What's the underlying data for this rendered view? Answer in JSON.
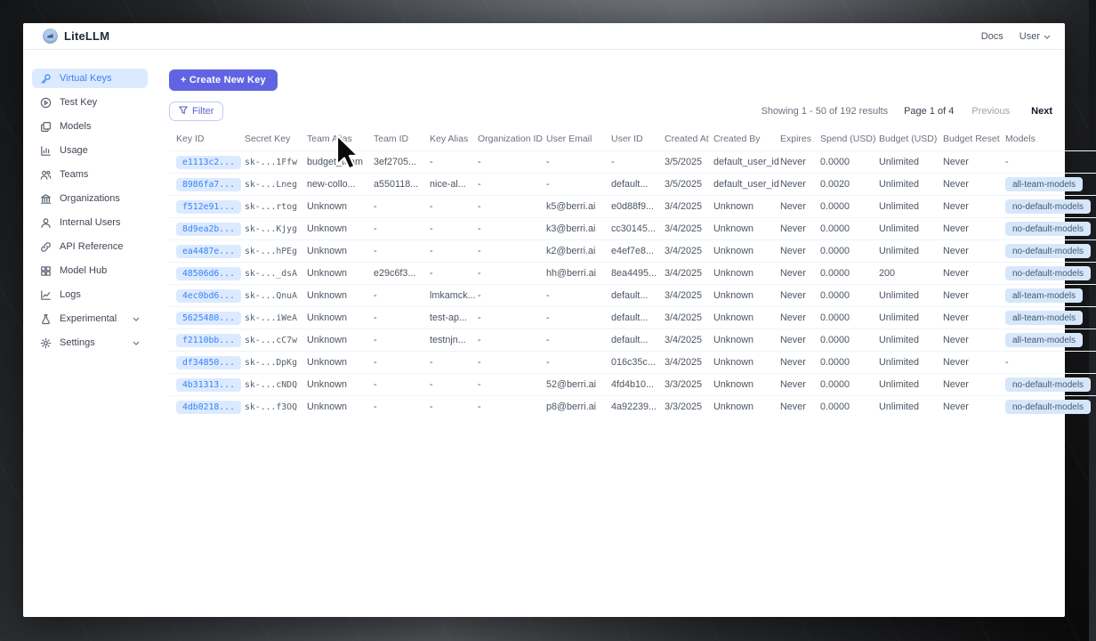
{
  "brand": {
    "name": "LiteLLM"
  },
  "header": {
    "docs_link": "Docs",
    "user_menu": "User"
  },
  "sidebar": {
    "items": [
      {
        "label": "Virtual Keys",
        "icon": "key-icon",
        "selected": true,
        "chevron": false
      },
      {
        "label": "Test Key",
        "icon": "play-icon",
        "selected": false,
        "chevron": false
      },
      {
        "label": "Models",
        "icon": "models-icon",
        "selected": false,
        "chevron": false
      },
      {
        "label": "Usage",
        "icon": "usage-icon",
        "selected": false,
        "chevron": false
      },
      {
        "label": "Teams",
        "icon": "teams-icon",
        "selected": false,
        "chevron": false
      },
      {
        "label": "Organizations",
        "icon": "organization-icon",
        "selected": false,
        "chevron": false
      },
      {
        "label": "Internal Users",
        "icon": "user-icon",
        "selected": false,
        "chevron": false
      },
      {
        "label": "API Reference",
        "icon": "link-icon",
        "selected": false,
        "chevron": false
      },
      {
        "label": "Model Hub",
        "icon": "grid-icon",
        "selected": false,
        "chevron": false
      },
      {
        "label": "Logs",
        "icon": "logs-icon",
        "selected": false,
        "chevron": false
      },
      {
        "label": "Experimental",
        "icon": "flask-icon",
        "selected": false,
        "chevron": true
      },
      {
        "label": "Settings",
        "icon": "gear-icon",
        "selected": false,
        "chevron": true
      }
    ]
  },
  "toolbar": {
    "create_button": "+ Create New Key",
    "filter_button": "Filter"
  },
  "pagination": {
    "showing": "Showing 1 - 50 of 192 results",
    "page": "Page 1 of 4",
    "previous": "Previous",
    "next": "Next"
  },
  "table": {
    "columns": [
      "Key ID",
      "Secret Key",
      "Team Alias",
      "Team ID",
      "Key Alias",
      "Organization ID",
      "User Email",
      "User ID",
      "Created At",
      "Created By",
      "Expires",
      "Spend (USD)",
      "Budget (USD)",
      "Budget Reset",
      "Models"
    ],
    "rows": [
      [
        "e1113c2...",
        "sk-...1Ffw",
        "budget_team",
        "3ef2705...",
        "-",
        "-",
        "-",
        "-",
        "3/5/2025",
        "default_user_id",
        "Never",
        "0.0000",
        "Unlimited",
        "Never",
        "-"
      ],
      [
        "8986fa7...",
        "sk-...Lneg",
        "new-collo...",
        "a550118...",
        "nice-al...",
        "-",
        "-",
        "default...",
        "3/5/2025",
        "default_user_id",
        "Never",
        "0.0020",
        "Unlimited",
        "Never",
        "all-team-models"
      ],
      [
        "f512e91...",
        "sk-...rtog",
        "Unknown",
        "-",
        "-",
        "-",
        "k5@berri.ai",
        "e0d88f9...",
        "3/4/2025",
        "Unknown",
        "Never",
        "0.0000",
        "Unlimited",
        "Never",
        "no-default-models"
      ],
      [
        "8d9ea2b...",
        "sk-...Kjyg",
        "Unknown",
        "-",
        "-",
        "-",
        "k3@berri.ai",
        "cc30145...",
        "3/4/2025",
        "Unknown",
        "Never",
        "0.0000",
        "Unlimited",
        "Never",
        "no-default-models"
      ],
      [
        "ea4487e...",
        "sk-...hPEg",
        "Unknown",
        "-",
        "-",
        "-",
        "k2@berri.ai",
        "e4ef7e8...",
        "3/4/2025",
        "Unknown",
        "Never",
        "0.0000",
        "Unlimited",
        "Never",
        "no-default-models"
      ],
      [
        "48506d6...",
        "sk-..._dsA",
        "Unknown",
        "e29c6f3...",
        "-",
        "-",
        "hh@berri.ai",
        "8ea4495...",
        "3/4/2025",
        "Unknown",
        "Never",
        "0.0000",
        "200",
        "Never",
        "no-default-models"
      ],
      [
        "4ec0bd6...",
        "sk-...QnuA",
        "Unknown",
        "-",
        "lmkamck...",
        "-",
        "-",
        "default...",
        "3/4/2025",
        "Unknown",
        "Never",
        "0.0000",
        "Unlimited",
        "Never",
        "all-team-models"
      ],
      [
        "5625480...",
        "sk-...iWeA",
        "Unknown",
        "-",
        "test-ap...",
        "-",
        "-",
        "default...",
        "3/4/2025",
        "Unknown",
        "Never",
        "0.0000",
        "Unlimited",
        "Never",
        "all-team-models"
      ],
      [
        "f2110bb...",
        "sk-...cC7w",
        "Unknown",
        "-",
        "testnjn...",
        "-",
        "-",
        "default...",
        "3/4/2025",
        "Unknown",
        "Never",
        "0.0000",
        "Unlimited",
        "Never",
        "all-team-models"
      ],
      [
        "df34850...",
        "sk-...DpKg",
        "Unknown",
        "-",
        "-",
        "-",
        "-",
        "016c35c...",
        "3/4/2025",
        "Unknown",
        "Never",
        "0.0000",
        "Unlimited",
        "Never",
        "-"
      ],
      [
        "4b31313...",
        "sk-...cNDQ",
        "Unknown",
        "-",
        "-",
        "-",
        "52@berri.ai",
        "4fd4b10...",
        "3/3/2025",
        "Unknown",
        "Never",
        "0.0000",
        "Unlimited",
        "Never",
        "no-default-models"
      ],
      [
        "4db0218...",
        "sk-...f3OQ",
        "Unknown",
        "-",
        "-",
        "-",
        "p8@berri.ai",
        "4a92239...",
        "3/3/2025",
        "Unknown",
        "Never",
        "0.0000",
        "Unlimited",
        "Never",
        "no-default-models"
      ]
    ]
  },
  "colors": {
    "accent": "#6064e3",
    "selected_text": "#3b82f6",
    "selected_bg": "#dbeafe",
    "chip_bg": "#dbeaff",
    "badge_bg": "#d6e7fb"
  }
}
